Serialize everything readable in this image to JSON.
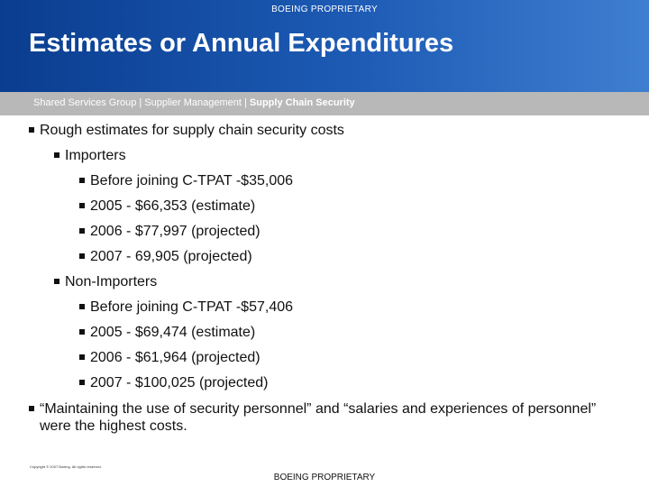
{
  "header": {
    "proprietary": "BOEING PROPRIETARY",
    "title": "Estimates or Annual Expenditures"
  },
  "subheader": {
    "prefix": "Shared Services Group | Supplier Management | ",
    "highlight": "Supply Chain Security"
  },
  "bullets": {
    "main": "Rough estimates for supply chain security costs",
    "importers": {
      "label": "Importers",
      "items": [
        "Before joining C-TPAT -$35,006",
        "2005 - $66,353 (estimate)",
        "2006 - $77,997 (projected)",
        "2007 - 69,905 (projected)"
      ]
    },
    "non_importers": {
      "label": "Non-Importers",
      "items": [
        "Before joining C-TPAT -$57,406",
        "2005 - $69,474 (estimate)",
        "2006 - $61,964 (projected)",
        "2007 - $100,025 (projected)"
      ]
    },
    "closing": "“Maintaining the use of security personnel” and “salaries and experiences of personnel” were the highest costs."
  },
  "footer": {
    "copyright": "Copyright © 2007 Boeing. All rights reserved.",
    "proprietary": "BOEING PROPRIETARY"
  }
}
